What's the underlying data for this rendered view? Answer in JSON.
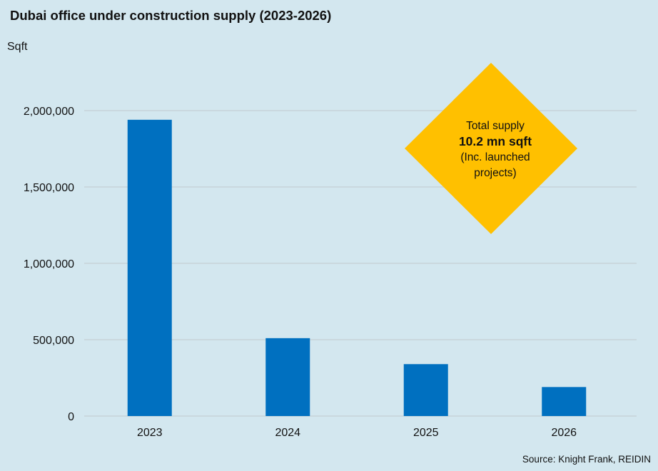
{
  "chart_data": {
    "type": "bar",
    "title": "Dubai office under construction supply (2023-2026)",
    "ylabel": "Sqft",
    "xlabel": "",
    "categories": [
      "2023",
      "2024",
      "2025",
      "2026"
    ],
    "values": [
      1940000,
      510000,
      340000,
      190000
    ],
    "ylim": [
      0,
      2000000
    ],
    "yticks": [
      0,
      500000,
      1000000,
      1500000,
      2000000
    ],
    "ytick_labels": [
      "0",
      "500,000",
      "1,000,000",
      "1,500,000",
      "2,000,000"
    ],
    "grid": true,
    "legend": null,
    "annotation": {
      "line1": "Total supply",
      "line2": "10.2 mn sqft",
      "line3": "(Inc. launched",
      "line4": "projects)"
    },
    "source": "Source: Knight Frank, REIDIN"
  },
  "colors": {
    "background": "#d3e7ef",
    "bar": "#0070c0",
    "gridline": "#c8d4d8",
    "annotation_fill": "#ffc000"
  }
}
